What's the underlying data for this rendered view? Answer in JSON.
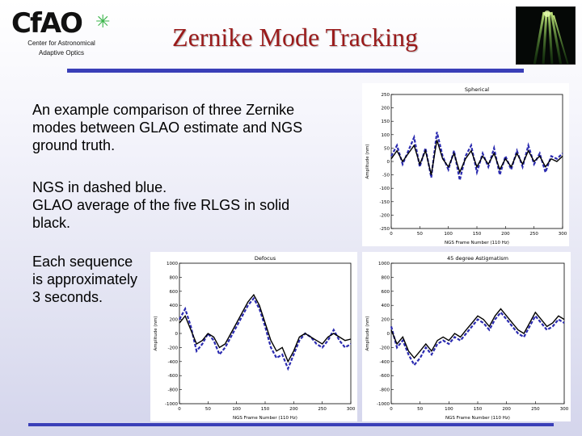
{
  "header": {
    "logo_text": "CfAO",
    "logo_sub_line1": "Center for Astronomical",
    "logo_sub_line2": "Adaptive Optics",
    "title": "Zernike Mode Tracking"
  },
  "body": {
    "paragraph1": "An example comparison of three Zernike modes between GLAO estimate and NGS ground truth.",
    "paragraph2_line1": "NGS in dashed blue.",
    "paragraph2_line2": "GLAO average of the five RLGS in solid black.",
    "paragraph3": "Each sequence is approximately 3 seconds."
  },
  "colors": {
    "title": "#9a1b1b",
    "rule": "#3a3fb8",
    "ngs": "#2b2bb0",
    "glao": "#000000"
  },
  "chart_data": [
    {
      "type": "line",
      "title": "Spherical",
      "xlabel": "NGS Frame Number (110 Hz)",
      "ylabel": "Amplitude (nm)",
      "xlim": [
        0,
        300
      ],
      "ylim": [
        -250,
        250
      ],
      "xticks": [
        0,
        50,
        100,
        150,
        200,
        250,
        300
      ],
      "yticks": [
        -250,
        -200,
        -150,
        -100,
        -50,
        0,
        50,
        100,
        150,
        200,
        250
      ],
      "x": [
        0,
        10,
        20,
        30,
        40,
        50,
        60,
        70,
        80,
        90,
        100,
        110,
        120,
        130,
        140,
        150,
        160,
        170,
        180,
        190,
        200,
        210,
        220,
        230,
        240,
        250,
        260,
        270,
        280,
        290,
        300
      ],
      "series": [
        {
          "name": "NGS",
          "style": "dashed",
          "color": "#2b2bb0",
          "values": [
            20,
            60,
            -10,
            40,
            90,
            -20,
            50,
            -60,
            110,
            20,
            -30,
            40,
            -70,
            20,
            60,
            -40,
            30,
            -20,
            50,
            -50,
            20,
            -30,
            40,
            -20,
            60,
            -10,
            30,
            -40,
            20,
            10,
            30
          ]
        },
        {
          "name": "GLAO",
          "style": "solid",
          "color": "#000000",
          "values": [
            10,
            40,
            0,
            30,
            60,
            -10,
            40,
            -50,
            80,
            10,
            -20,
            30,
            -40,
            10,
            40,
            -20,
            20,
            -10,
            30,
            -30,
            10,
            -20,
            30,
            -10,
            40,
            0,
            20,
            -20,
            10,
            0,
            20
          ]
        }
      ]
    },
    {
      "type": "line",
      "title": "Defocus",
      "xlabel": "NGS Frame Number (110 Hz)",
      "ylabel": "Amplitude (nm)",
      "xlim": [
        0,
        300
      ],
      "ylim": [
        -1000,
        1000
      ],
      "xticks": [
        0,
        50,
        100,
        150,
        200,
        250,
        300
      ],
      "yticks": [
        -1000,
        -800,
        -600,
        -400,
        -200,
        0,
        200,
        400,
        600,
        800,
        1000
      ],
      "x": [
        0,
        10,
        20,
        30,
        40,
        50,
        60,
        70,
        80,
        90,
        100,
        110,
        120,
        130,
        140,
        150,
        160,
        170,
        180,
        190,
        200,
        210,
        220,
        230,
        240,
        250,
        260,
        270,
        280,
        290,
        300
      ],
      "series": [
        {
          "name": "NGS",
          "style": "dashed",
          "color": "#2b2bb0",
          "values": [
            200,
            350,
            100,
            -250,
            -150,
            0,
            -100,
            -300,
            -200,
            -50,
            100,
            250,
            400,
            500,
            350,
            100,
            -200,
            -350,
            -300,
            -500,
            -300,
            -100,
            0,
            -50,
            -150,
            -200,
            -100,
            50,
            -100,
            -200,
            -150
          ]
        },
        {
          "name": "GLAO",
          "style": "solid",
          "color": "#000000",
          "values": [
            150,
            250,
            50,
            -150,
            -100,
            0,
            -50,
            -200,
            -150,
            0,
            150,
            300,
            450,
            550,
            400,
            150,
            -100,
            -250,
            -200,
            -400,
            -250,
            -50,
            0,
            -50,
            -100,
            -150,
            -50,
            0,
            -50,
            -100,
            -80
          ]
        }
      ]
    },
    {
      "type": "line",
      "title": "45 degree Astigmatism",
      "xlabel": "NGS Frame Number (110 Hz)",
      "ylabel": "Amplitude (nm)",
      "xlim": [
        0,
        300
      ],
      "ylim": [
        -1000,
        1000
      ],
      "xticks": [
        0,
        50,
        100,
        150,
        200,
        250,
        300
      ],
      "yticks": [
        -1000,
        -800,
        -600,
        -400,
        -200,
        0,
        200,
        400,
        600,
        800,
        1000
      ],
      "x": [
        0,
        10,
        20,
        30,
        40,
        50,
        60,
        70,
        80,
        90,
        100,
        110,
        120,
        130,
        140,
        150,
        160,
        170,
        180,
        190,
        200,
        210,
        220,
        230,
        240,
        250,
        260,
        270,
        280,
        290,
        300
      ],
      "series": [
        {
          "name": "NGS",
          "style": "dashed",
          "color": "#2b2bb0",
          "values": [
            100,
            -200,
            -100,
            -300,
            -450,
            -350,
            -200,
            -300,
            -150,
            -100,
            -150,
            -50,
            -100,
            0,
            100,
            200,
            150,
            50,
            200,
            300,
            200,
            100,
            0,
            -50,
            100,
            250,
            150,
            50,
            100,
            200,
            150
          ]
        },
        {
          "name": "GLAO",
          "style": "solid",
          "color": "#000000",
          "values": [
            50,
            -150,
            -50,
            -250,
            -350,
            -250,
            -150,
            -250,
            -100,
            -50,
            -100,
            0,
            -50,
            50,
            150,
            250,
            200,
            100,
            250,
            350,
            250,
            150,
            50,
            0,
            150,
            300,
            200,
            100,
            150,
            250,
            200
          ]
        }
      ]
    }
  ]
}
